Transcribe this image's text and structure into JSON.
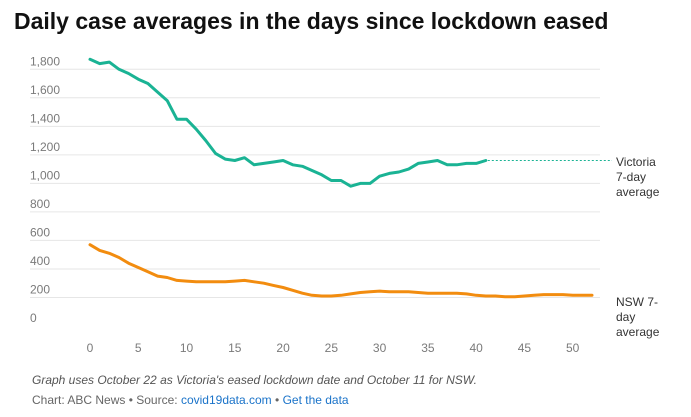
{
  "title": "Daily case averages in the days since lockdown eased",
  "footnote": "Graph uses October 22 as Victoria's eased lockdown date and October 11 for NSW.",
  "credit": {
    "chart_label": "Chart: ABC News",
    "separator": " • ",
    "source_label": "Source: ",
    "source_link": "covid19data.com",
    "data_link": "Get the data"
  },
  "colors": {
    "victoria": "#1ab394",
    "nsw": "#f28c0f",
    "grid": "#e6e6e6"
  },
  "chart_data": {
    "type": "line",
    "title": "Daily case averages in the days since lockdown eased",
    "xlabel": "",
    "ylabel": "",
    "xlim": [
      0,
      52
    ],
    "ylim": [
      0,
      1900
    ],
    "x_ticks": [
      0,
      5,
      10,
      15,
      20,
      25,
      30,
      35,
      40,
      45,
      50
    ],
    "y_ticks": [
      0,
      200,
      400,
      600,
      800,
      1000,
      1200,
      1400,
      1600,
      1800
    ],
    "y_tick_labels": [
      "0",
      "200",
      "400",
      "600",
      "800",
      "1,000",
      "1,200",
      "1,400",
      "1,600",
      "1,800"
    ],
    "grid": true,
    "series": [
      {
        "name": "Victoria 7-day average",
        "label_lines": [
          "Victoria",
          "7-day",
          "average"
        ],
        "color": "#1ab394",
        "projection_value": 1160,
        "x": [
          0,
          1,
          2,
          3,
          4,
          5,
          6,
          7,
          8,
          9,
          10,
          11,
          12,
          13,
          14,
          15,
          16,
          17,
          18,
          19,
          20,
          21,
          22,
          23,
          24,
          25,
          26,
          27,
          28,
          29,
          30,
          31,
          32,
          33,
          34,
          35,
          36,
          37,
          38,
          39,
          40,
          41
        ],
        "values": [
          1870,
          1840,
          1850,
          1800,
          1770,
          1730,
          1700,
          1640,
          1580,
          1450,
          1450,
          1380,
          1300,
          1210,
          1170,
          1160,
          1180,
          1130,
          1140,
          1150,
          1160,
          1130,
          1120,
          1090,
          1060,
          1020,
          1020,
          980,
          1000,
          1000,
          1050,
          1070,
          1080,
          1100,
          1140,
          1150,
          1160,
          1130,
          1130,
          1140,
          1140,
          1160
        ]
      },
      {
        "name": "NSW 7-day average",
        "label_lines": [
          "NSW 7-",
          "day",
          "average"
        ],
        "color": "#f28c0f",
        "x": [
          0,
          1,
          2,
          3,
          4,
          5,
          6,
          7,
          8,
          9,
          10,
          11,
          12,
          13,
          14,
          15,
          16,
          17,
          18,
          19,
          20,
          21,
          22,
          23,
          24,
          25,
          26,
          27,
          28,
          29,
          30,
          31,
          32,
          33,
          34,
          35,
          36,
          37,
          38,
          39,
          40,
          41,
          42,
          43,
          44,
          45,
          46,
          47,
          48,
          49,
          50,
          51,
          52
        ],
        "values": [
          570,
          530,
          510,
          480,
          440,
          410,
          380,
          350,
          340,
          320,
          315,
          310,
          310,
          310,
          310,
          315,
          320,
          310,
          300,
          285,
          270,
          250,
          230,
          215,
          210,
          210,
          215,
          225,
          235,
          240,
          245,
          240,
          240,
          240,
          235,
          230,
          230,
          230,
          230,
          225,
          215,
          210,
          210,
          205,
          205,
          210,
          215,
          220,
          220,
          220,
          215,
          215,
          215
        ]
      }
    ]
  }
}
